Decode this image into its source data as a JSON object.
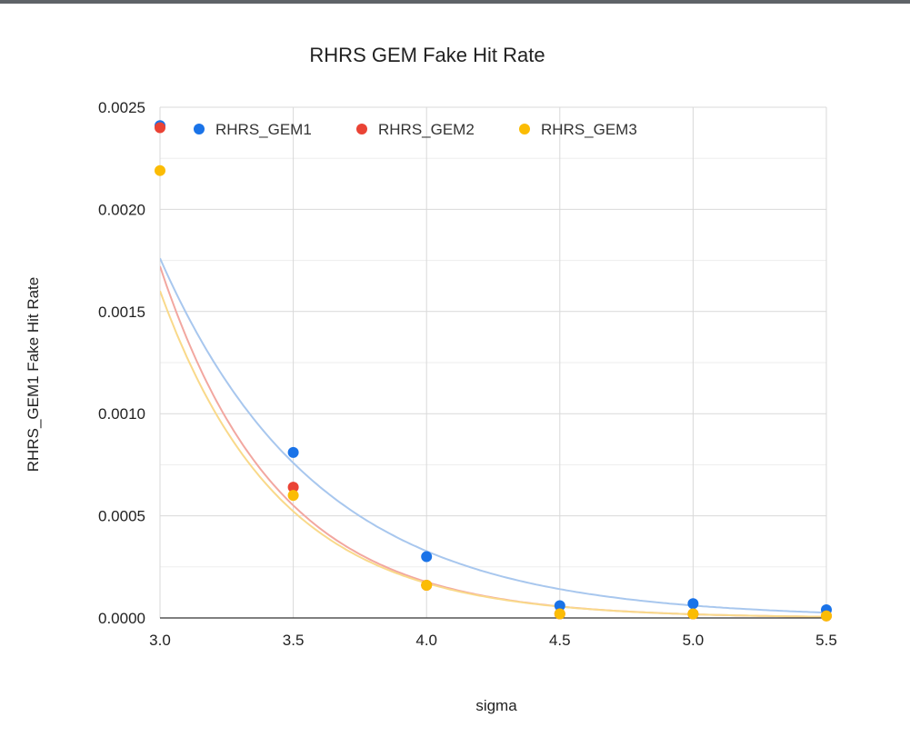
{
  "chart_data": {
    "type": "scatter",
    "title": "RHRS GEM Fake Hit Rate",
    "xlabel": "sigma",
    "ylabel": "RHRS_GEM1 Fake Hit Rate",
    "xlim": [
      3.0,
      5.5
    ],
    "ylim": [
      0.0,
      0.0025
    ],
    "x_ticks": [
      "3.0",
      "3.5",
      "4.0",
      "4.5",
      "5.0",
      "5.5"
    ],
    "y_ticks": [
      "0.0000",
      "0.0005",
      "0.0010",
      "0.0015",
      "0.0020",
      "0.0025"
    ],
    "grid": true,
    "legend_position": "top-left",
    "trendlines": "exponential",
    "x": [
      3.0,
      3.5,
      4.0,
      4.5,
      5.0,
      5.5
    ],
    "series": [
      {
        "name": "RHRS_GEM1",
        "color": "#1a73e8",
        "trend_color": "#a8c7ee",
        "values": [
          0.00241,
          0.00081,
          0.0003,
          6e-05,
          7e-05,
          4e-05
        ]
      },
      {
        "name": "RHRS_GEM2",
        "color": "#ea4335",
        "trend_color": "#f2a7a0",
        "values": [
          0.0024,
          0.00064,
          0.00016,
          2e-05,
          2e-05,
          1e-05
        ]
      },
      {
        "name": "RHRS_GEM3",
        "color": "#fbbc04",
        "trend_color": "#f9d98a",
        "values": [
          0.00219,
          0.0006,
          0.00016,
          2e-05,
          2e-05,
          1e-05
        ]
      }
    ]
  }
}
